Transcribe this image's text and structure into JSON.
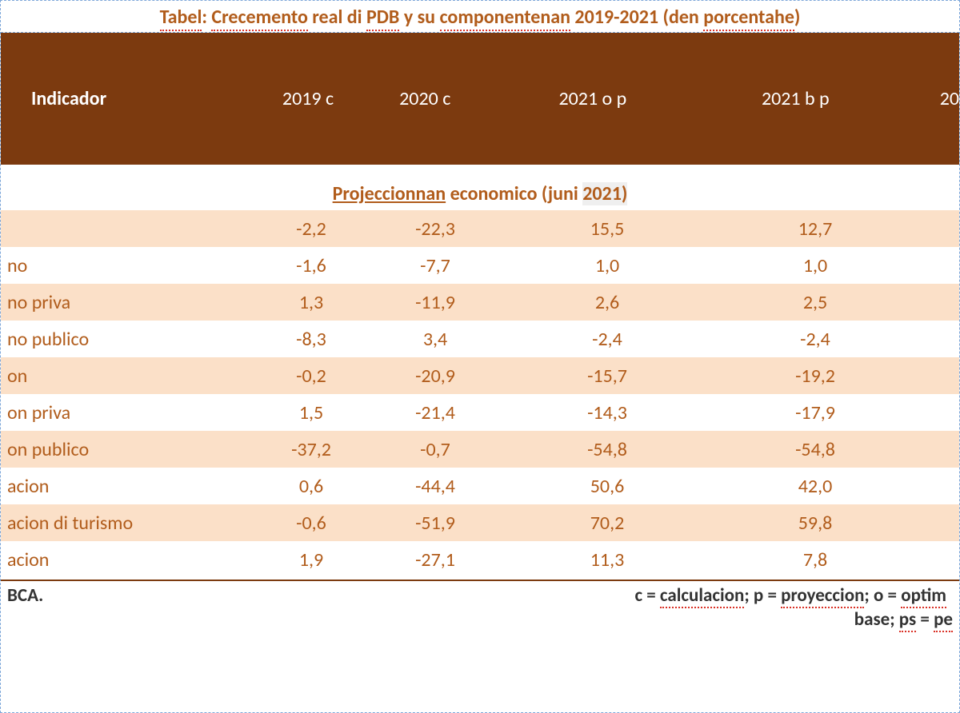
{
  "colors": {
    "accent": "#b15c1b",
    "header_bg": "#7c3a0f",
    "header_text": "#ffffff",
    "row_shade": "#fbe0c8",
    "border_dash": "#7da7d9",
    "spellcheck_underline": "#d93025"
  },
  "title": {
    "prefix": "Tabel",
    "w1": "Crecemento",
    "mid": "real di",
    "w2": "PDB",
    "rest": "y su",
    "w3": "componentenan",
    "tail": "2019-2021 (den",
    "w4": "porcentahe",
    "end": ")"
  },
  "header": {
    "indicador": "Indicador",
    "c2019": "2019 c",
    "c2020": "2020 c",
    "c2021o": "2021 o p",
    "c2021b": "2021 b p",
    "clast": "20"
  },
  "subheader": {
    "w1": "Projeccionnan",
    "rest": "economico (juni",
    "yr": "2021)"
  },
  "rows": [
    {
      "label": "",
      "v1": "-2,2",
      "v2": "-22,3",
      "v3": "15,5",
      "v4": "12,7",
      "shaded": true
    },
    {
      "label": "no",
      "v1": "-1,6",
      "v2": "-7,7",
      "v3": "1,0",
      "v4": "1,0",
      "shaded": false
    },
    {
      "label": "no priva",
      "v1": "1,3",
      "v2": "-11,9",
      "v3": "2,6",
      "v4": "2,5",
      "shaded": true
    },
    {
      "label": "no publico",
      "v1": "-8,3",
      "v2": "3,4",
      "v3": "-2,4",
      "v4": "-2,4",
      "shaded": false
    },
    {
      "label": "on",
      "v1": "-0,2",
      "v2": "-20,9",
      "v3": "-15,7",
      "v4": "-19,2",
      "shaded": true
    },
    {
      "label": "on priva",
      "v1": "1,5",
      "v2": "-21,4",
      "v3": "-14,3",
      "v4": "-17,9",
      "shaded": false
    },
    {
      "label": "on publico",
      "v1": "-37,2",
      "v2": "-0,7",
      "v3": "-54,8",
      "v4": "-54,8",
      "shaded": true
    },
    {
      "label": "acion",
      "v1": "0,6",
      "v2": "-44,4",
      "v3": "50,6",
      "v4": "42,0",
      "shaded": false
    },
    {
      "label": "acion di turismo",
      "v1": "-0,6",
      "v2": "-51,9",
      "v3": "70,2",
      "v4": "59,8",
      "shaded": true
    },
    {
      "label": "acion",
      "v1": "1,9",
      "v2": "-27,1",
      "v3": "11,3",
      "v4": "7,8",
      "shaded": false
    }
  ],
  "footer": {
    "left": "BCA.",
    "right_a": "c =",
    "right_w1": "calculacion",
    "right_b": ";  p =",
    "right_w2": "proyeccion",
    "right_c": "; o =",
    "right_w3": "optim",
    "line2_a": "base;",
    "line2_w1": "ps",
    "line2_b": "=",
    "line2_w2": "pe"
  }
}
